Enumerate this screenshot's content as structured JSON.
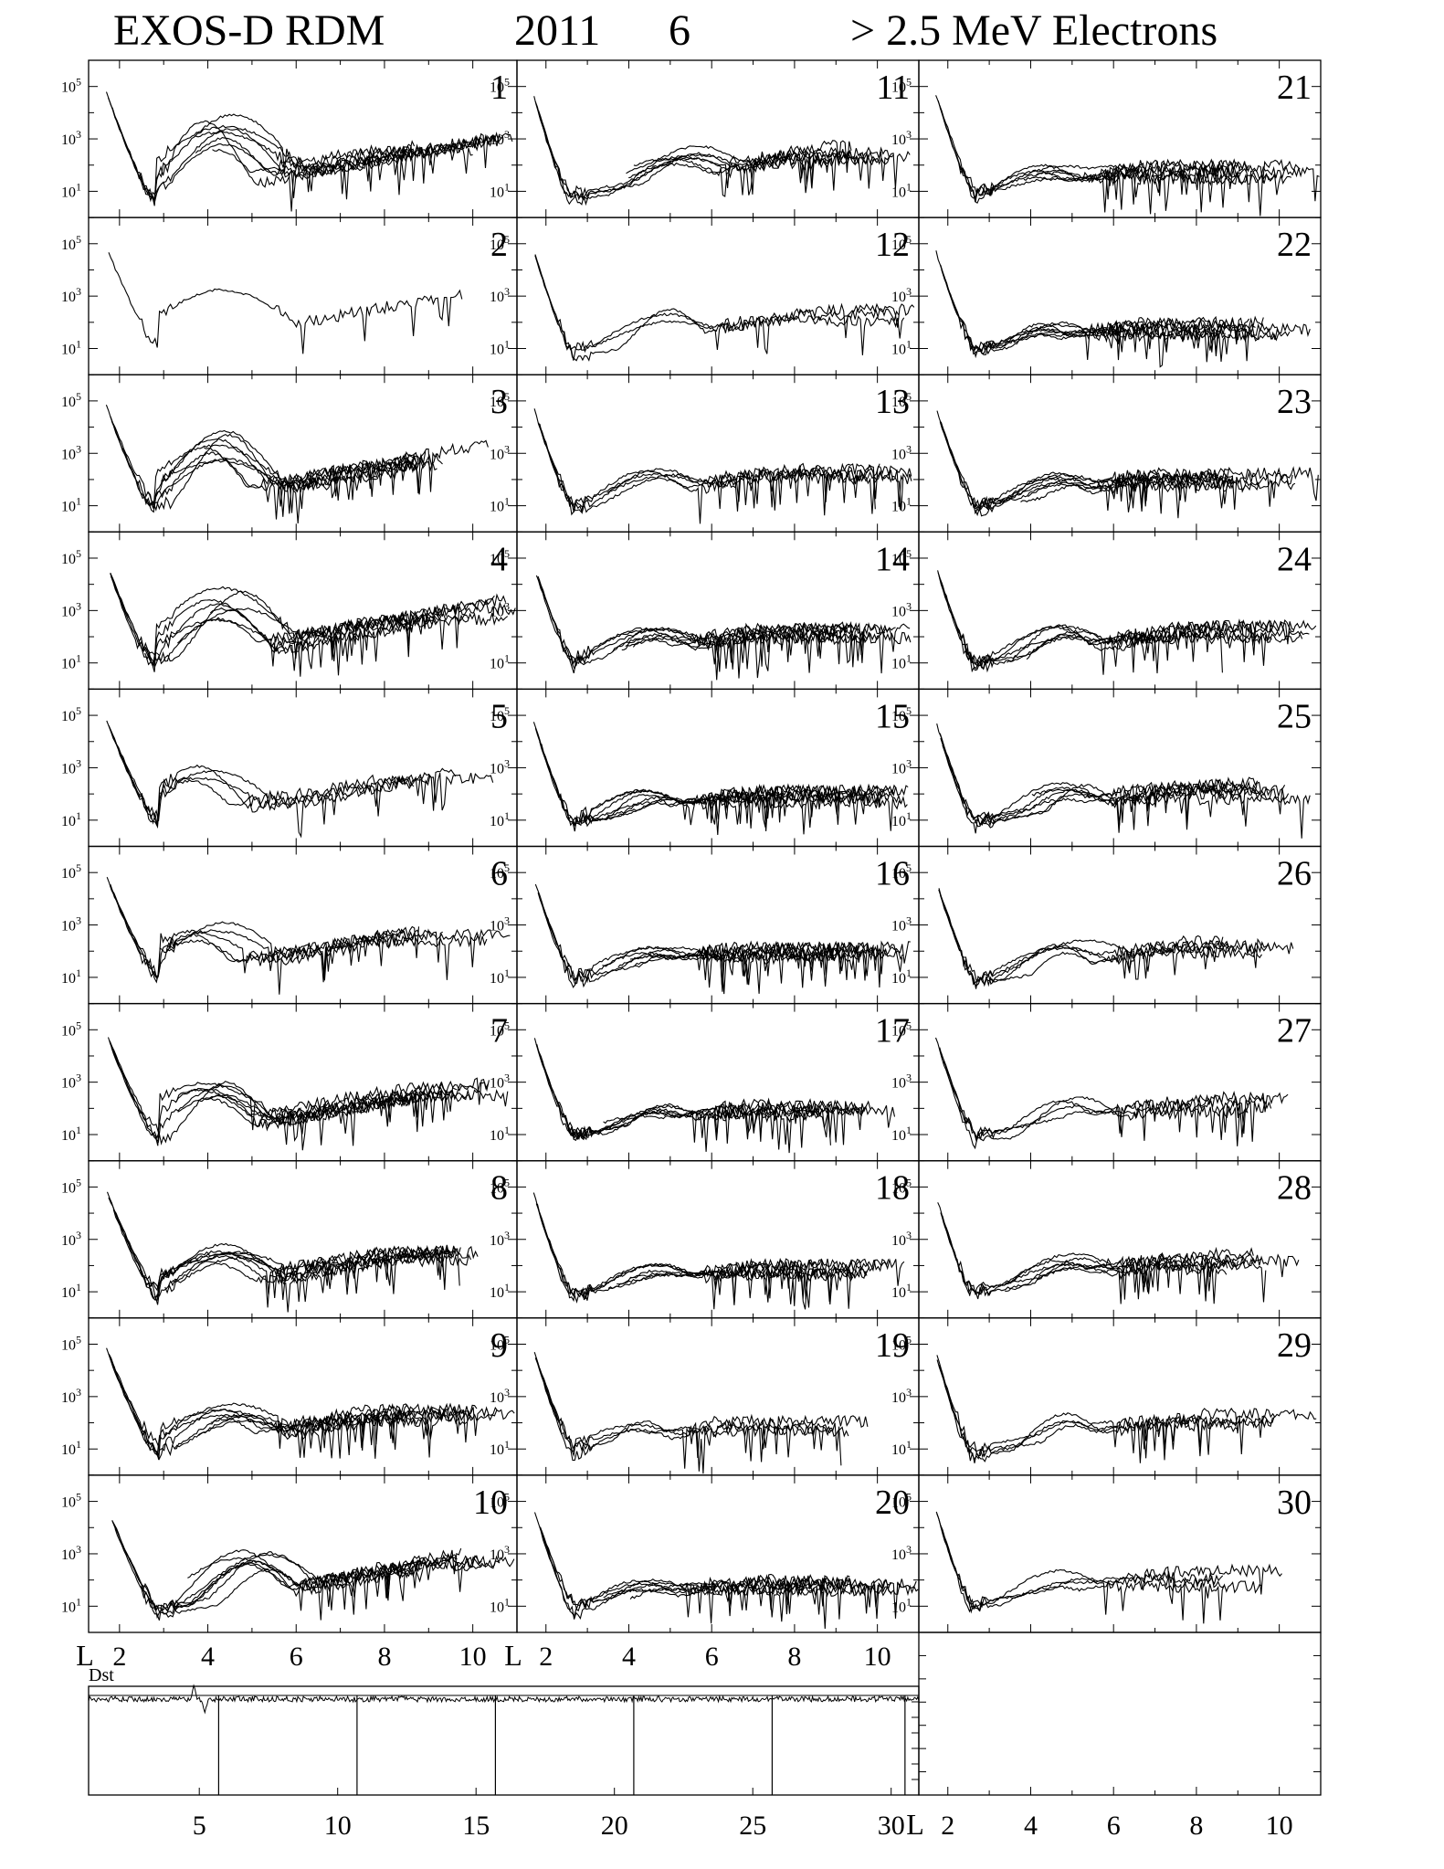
{
  "title": {
    "instrument": "EXOS-D RDM",
    "year": "2011",
    "month": "6",
    "channel": "> 2.5  MeV Electrons"
  },
  "chart_data": {
    "type": "line",
    "panel_grid": {
      "columns": 3,
      "rows": 10
    },
    "panel_labels": [
      "1",
      "2",
      "3",
      "4",
      "5",
      "6",
      "7",
      "8",
      "9",
      "10",
      "11",
      "12",
      "13",
      "14",
      "15",
      "16",
      "17",
      "18",
      "19",
      "20",
      "21",
      "22",
      "23",
      "24",
      "25",
      "26",
      "27",
      "28",
      "29",
      "30"
    ],
    "x_axis": {
      "label": "L",
      "range": [
        1.3,
        11
      ],
      "ticks": [
        2,
        4,
        6,
        8,
        10
      ],
      "tick_labels": [
        "2",
        "4",
        "6",
        "8",
        "10"
      ]
    },
    "y_axis": {
      "scale": "log",
      "range_log10": [
        0,
        6
      ],
      "tick_labels": [
        {
          "base": "10",
          "exp": "5"
        },
        {
          "base": "10",
          "exp": "3"
        },
        {
          "base": "10",
          "exp": "1"
        }
      ]
    },
    "panels": [
      {
        "day": "1",
        "peak_L": 4.2,
        "peak_log": 3.9,
        "curves": 8,
        "min_L": 2.8
      },
      {
        "day": "2",
        "peak_L": 4.1,
        "peak_log": 3.8,
        "curves": 1,
        "min_L": 2.9
      },
      {
        "day": "3",
        "peak_L": 4.3,
        "peak_log": 3.8,
        "curves": 8,
        "min_L": 2.8
      },
      {
        "day": "4",
        "peak_L": 4.4,
        "peak_log": 3.8,
        "curves": 8,
        "min_L": 2.8
      },
      {
        "day": "5",
        "peak_L": 4.0,
        "peak_log": 3.0,
        "curves": 4,
        "min_L": 2.9
      },
      {
        "day": "6",
        "peak_L": 4.0,
        "peak_log": 3.0,
        "curves": 5,
        "min_L": 2.9
      },
      {
        "day": "7",
        "peak_L": 4.2,
        "peak_log": 2.9,
        "curves": 8,
        "min_L": 2.9
      },
      {
        "day": "8",
        "peak_L": 4.3,
        "peak_log": 2.7,
        "curves": 8,
        "min_L": 2.9
      },
      {
        "day": "9",
        "peak_L": 4.7,
        "peak_log": 2.6,
        "curves": 8,
        "min_L": 2.9
      },
      {
        "day": "10",
        "peak_L": 5.0,
        "peak_log": 3.0,
        "curves": 8,
        "min_L": 2.9
      },
      {
        "day": "11",
        "peak_L": 5.3,
        "peak_log": 2.6,
        "curves": 7,
        "min_L": 2.6
      },
      {
        "day": "12",
        "peak_L": 4.8,
        "peak_log": 2.6,
        "curves": 3,
        "min_L": 2.7
      },
      {
        "day": "13",
        "peak_L": 4.7,
        "peak_log": 2.5,
        "curves": 5,
        "min_L": 2.7
      },
      {
        "day": "14",
        "peak_L": 4.7,
        "peak_log": 2.4,
        "curves": 8,
        "min_L": 2.7
      },
      {
        "day": "15",
        "peak_L": 4.7,
        "peak_log": 2.2,
        "curves": 8,
        "min_L": 2.7
      },
      {
        "day": "16",
        "peak_L": 4.8,
        "peak_log": 2.2,
        "curves": 8,
        "min_L": 2.7
      },
      {
        "day": "17",
        "peak_L": 4.7,
        "peak_log": 2.2,
        "curves": 7,
        "min_L": 2.7
      },
      {
        "day": "18",
        "peak_L": 4.7,
        "peak_log": 2.1,
        "curves": 7,
        "min_L": 2.7
      },
      {
        "day": "19",
        "peak_L": 4.5,
        "peak_log": 2.1,
        "curves": 4,
        "min_L": 2.7
      },
      {
        "day": "20",
        "peak_L": 4.5,
        "peak_log": 2.0,
        "curves": 7,
        "min_L": 2.7
      },
      {
        "day": "21",
        "peak_L": 4.5,
        "peak_log": 2.0,
        "curves": 7,
        "min_L": 2.7
      },
      {
        "day": "22",
        "peak_L": 4.5,
        "peak_log": 2.0,
        "curves": 8,
        "min_L": 2.7
      },
      {
        "day": "23",
        "peak_L": 4.8,
        "peak_log": 2.2,
        "curves": 8,
        "min_L": 2.7
      },
      {
        "day": "24",
        "peak_L": 4.8,
        "peak_log": 2.4,
        "curves": 7,
        "min_L": 2.7
      },
      {
        "day": "25",
        "peak_L": 5.0,
        "peak_log": 2.4,
        "curves": 7,
        "min_L": 2.7
      },
      {
        "day": "26",
        "peak_L": 5.0,
        "peak_log": 2.4,
        "curves": 5,
        "min_L": 2.7
      },
      {
        "day": "27",
        "peak_L": 5.0,
        "peak_log": 2.4,
        "curves": 4,
        "min_L": 2.7
      },
      {
        "day": "28",
        "peak_L": 5.0,
        "peak_log": 2.4,
        "curves": 7,
        "min_L": 2.6
      },
      {
        "day": "29",
        "peak_L": 5.0,
        "peak_log": 2.3,
        "curves": 4,
        "min_L": 2.6
      },
      {
        "day": "30",
        "peak_L": 5.0,
        "peak_log": 2.3,
        "curves": 4,
        "min_L": 2.6
      }
    ],
    "dst_panel": {
      "label": "Dst",
      "x_range": [
        1,
        31
      ],
      "ticks": [
        5,
        10,
        15,
        20,
        25,
        30
      ],
      "tick_labels": [
        "5",
        "10",
        "15",
        "20",
        "25",
        "30"
      ],
      "day_markers": [
        5.7,
        10.7,
        15.7,
        20.7,
        25.7,
        30.5
      ],
      "spikes": [
        {
          "day": 4.8,
          "size": 0.8
        },
        {
          "day": 5.2,
          "size": -0.7
        }
      ]
    }
  }
}
